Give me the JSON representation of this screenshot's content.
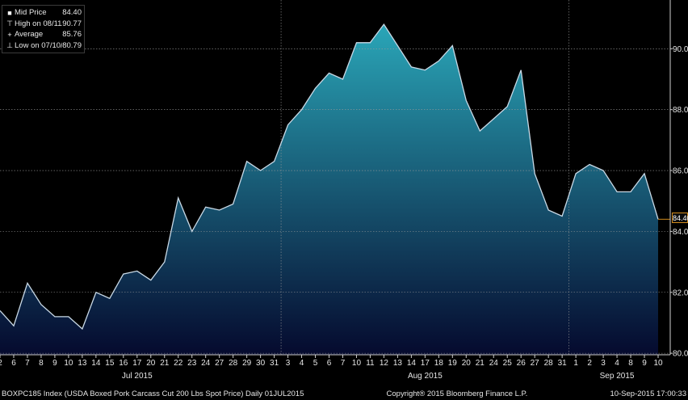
{
  "chart_data": {
    "type": "area",
    "series": [
      {
        "name": "Mid Price"
      }
    ],
    "x": [
      "2",
      "6",
      "7",
      "8",
      "9",
      "10",
      "13",
      "14",
      "15",
      "16",
      "17",
      "20",
      "21",
      "22",
      "23",
      "24",
      "27",
      "28",
      "29",
      "30",
      "31",
      "3",
      "4",
      "5",
      "6",
      "7",
      "10",
      "11",
      "12",
      "13",
      "14",
      "17",
      "18",
      "19",
      "20",
      "21",
      "24",
      "25",
      "26",
      "27",
      "28",
      "31",
      "1",
      "2",
      "3",
      "4",
      "8",
      "9",
      "10"
    ],
    "y": [
      81.4,
      80.9,
      82.3,
      81.6,
      81.2,
      81.2,
      80.8,
      82.0,
      81.8,
      82.6,
      82.7,
      82.4,
      83.0,
      85.1,
      84.0,
      84.8,
      84.7,
      84.9,
      86.3,
      86.0,
      86.3,
      87.5,
      88.0,
      88.7,
      89.2,
      89.0,
      90.2,
      90.2,
      90.8,
      90.1,
      89.4,
      89.3,
      89.6,
      90.1,
      88.3,
      87.3,
      87.7,
      88.1,
      89.3,
      85.9,
      84.7,
      84.5,
      85.9,
      86.2,
      86.0,
      85.3,
      85.3,
      85.9,
      84.4
    ],
    "x_groups": [
      {
        "label": "Jul 2015"
      },
      {
        "label": "Aug 2015"
      },
      {
        "label": "Sep 2015"
      }
    ],
    "ylim": [
      79.95,
      91.6
    ],
    "yticks": [
      "80.00",
      "82.00",
      "84.00",
      "86.00",
      "88.00",
      "90.00"
    ],
    "last_value_label": "84.40",
    "legend": [
      {
        "symbol": "■",
        "label": "Mid Price",
        "value": "84.40"
      },
      {
        "symbol": "⊤",
        "label": "High on 08/11/15",
        "value": "90.77"
      },
      {
        "symbol": "+",
        "label": "Average",
        "value": "85.76"
      },
      {
        "symbol": "⊥",
        "label": "Low on 07/10/15",
        "value": "80.79"
      }
    ],
    "legend_position": "top-left",
    "colors": {
      "line": "#c9d9e6",
      "fill_top": "#2aa6b8",
      "fill_bottom": "#050a2e",
      "grid": "#9a9a9a",
      "last_tag_border": "#d08a1c"
    },
    "grid": true
  },
  "footer": {
    "left": "BOXPC185 Index (USDA Boxed Pork Carcass Cut 200 Lbs Spot Price)  Daily 01JUL2015",
    "center": "Copyright® 2015 Bloomberg Finance L.P.",
    "right": "10-Sep-2015 17:00:33"
  }
}
